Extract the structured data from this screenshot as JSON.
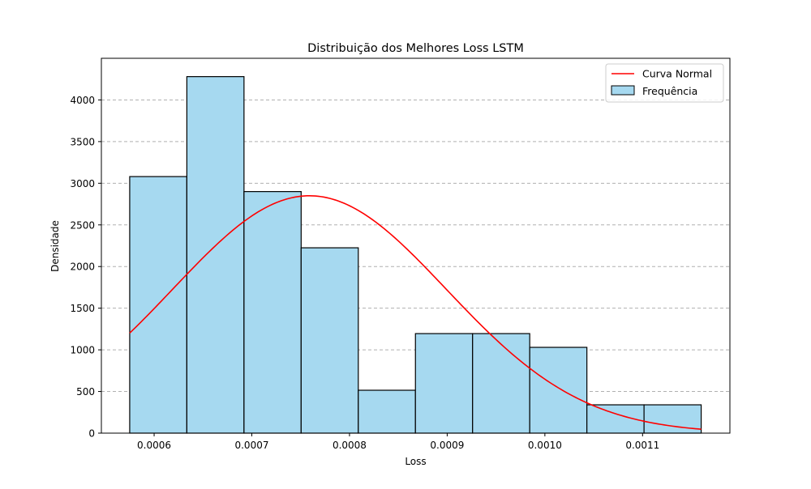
{
  "chart_data": {
    "type": "bar",
    "title": "Distribuição dos Melhores Loss LSTM",
    "xlabel": "Loss",
    "ylabel": "Densidade",
    "xlim": [
      0.000546,
      0.0011894
    ],
    "ylim": [
      0,
      4500
    ],
    "x_ticks": [
      0.0006,
      0.0007,
      0.0008,
      0.0009,
      0.001,
      0.0011
    ],
    "x_tick_labels": [
      "0.0006",
      "0.0007",
      "0.0008",
      "0.0009",
      "0.0010",
      "0.0011"
    ],
    "y_ticks": [
      0,
      500,
      1000,
      1500,
      2000,
      2500,
      3000,
      3500,
      4000
    ],
    "y_tick_labels": [
      "0",
      "500",
      "1000",
      "1500",
      "2000",
      "2500",
      "3000",
      "3500",
      "4000"
    ],
    "grid": "y-dashed",
    "legend_position": "top-right",
    "histogram": {
      "name": "Frequência",
      "bin_edges": [
        0.000575,
        0.0006335,
        0.000692,
        0.0007505,
        0.000809,
        0.0008675,
        0.000926,
        0.0009845,
        0.001043,
        0.0011015,
        0.00116
      ],
      "values": [
        3080,
        4280,
        2900,
        2225,
        515,
        1195,
        1195,
        1030,
        340,
        340
      ],
      "fill": "#a6d9f0",
      "edge": "#000000"
    },
    "normal_curve": {
      "name": "Curva Normal",
      "mean": 0.000759,
      "std": 0.00014,
      "x_range": [
        0.000575,
        0.00116
      ],
      "color": "#ff0000"
    }
  }
}
